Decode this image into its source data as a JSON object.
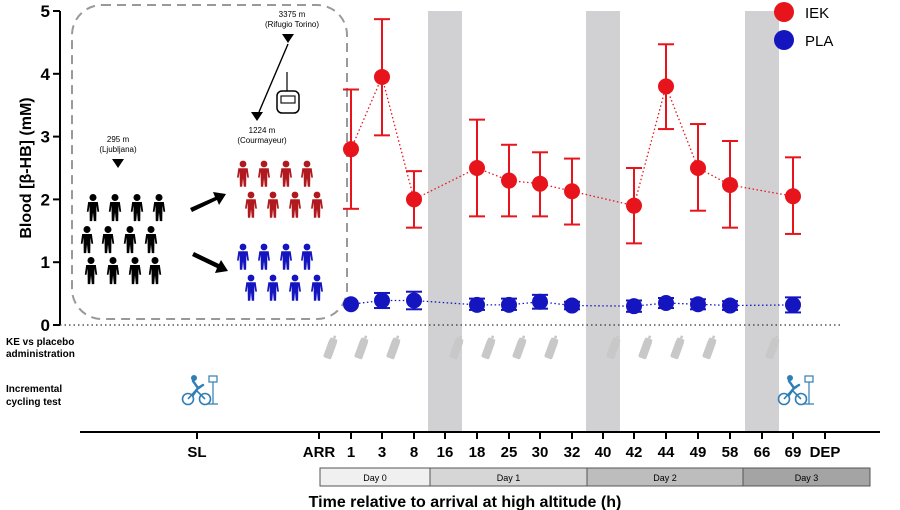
{
  "chart_data": {
    "type": "scatter",
    "ylabel": "Blood [β-HB] (mM)",
    "xlabel": "Time relative to arrival at high altitude (h)",
    "ylim": [
      0,
      5
    ],
    "yticks": [
      "0",
      "1",
      "2",
      "3",
      "4",
      "5"
    ],
    "x_categories": [
      "SL",
      "ARR",
      "1",
      "3",
      "8",
      "16",
      "18",
      "25",
      "30",
      "32",
      "40",
      "42",
      "44",
      "49",
      "58",
      "66",
      "69",
      "DEP"
    ],
    "night_bands": [
      "16",
      "40",
      "66"
    ],
    "series": [
      {
        "name": "IEK",
        "color": "#e8141c",
        "x": [
          "1",
          "3",
          "8",
          "18",
          "25",
          "30",
          "32",
          "42",
          "44",
          "49",
          "58",
          "69"
        ],
        "values": [
          2.8,
          3.95,
          2.0,
          2.5,
          2.3,
          2.25,
          2.13,
          1.9,
          3.8,
          2.5,
          2.23,
          2.05
        ],
        "err_low": [
          1.85,
          3.02,
          1.55,
          1.73,
          1.73,
          1.73,
          1.6,
          1.3,
          3.12,
          1.82,
          1.55,
          1.45
        ],
        "err_high": [
          3.75,
          4.87,
          2.45,
          3.27,
          2.87,
          2.75,
          2.65,
          2.5,
          4.47,
          3.2,
          2.93,
          2.67
        ]
      },
      {
        "name": "PLA",
        "color": "#1515c0",
        "x": [
          "1",
          "3",
          "8",
          "18",
          "25",
          "30",
          "32",
          "42",
          "44",
          "49",
          "58",
          "69"
        ],
        "values": [
          0.33,
          0.39,
          0.39,
          0.32,
          0.32,
          0.37,
          0.31,
          0.3,
          0.35,
          0.33,
          0.31,
          0.32
        ],
        "err_low": [
          0.33,
          0.27,
          0.25,
          0.24,
          0.24,
          0.26,
          0.25,
          0.21,
          0.27,
          0.25,
          0.24,
          0.2
        ],
        "err_high": [
          0.33,
          0.51,
          0.53,
          0.42,
          0.42,
          0.48,
          0.37,
          0.39,
          0.43,
          0.41,
          0.38,
          0.44
        ]
      }
    ],
    "days": [
      "Day 0",
      "Day 1",
      "Day 2",
      "Day 3"
    ],
    "row_labels": {
      "ke": [
        "KE vs placebo",
        "administration"
      ],
      "cycling": [
        "Incremental",
        "cycling test"
      ]
    },
    "bottle_times": [
      "1",
      "3",
      "8",
      "18",
      "25",
      "30",
      "32",
      "42",
      "44",
      "49",
      "58",
      "69"
    ],
    "cycling_times": [
      "SL",
      "69"
    ],
    "inset": {
      "low_label": [
        "295 m",
        "(Ljubljana)"
      ],
      "mid_label": [
        "1224 m",
        "(Courmayeur)"
      ],
      "high_label": [
        "3375 m",
        "(Rifugio Torino)"
      ]
    }
  }
}
